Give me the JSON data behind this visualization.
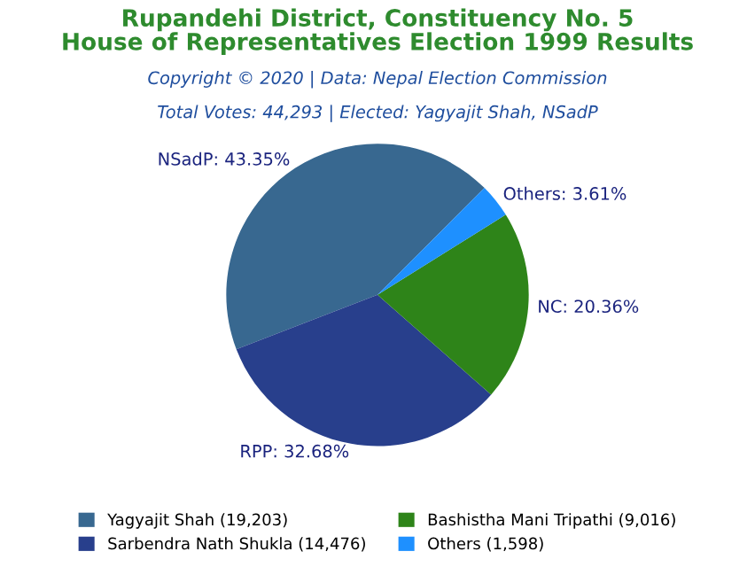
{
  "chart_data": {
    "type": "pie",
    "title": "Rupandehi District, Constituency No. 5\nHouse of Representatives Election 1999 Results",
    "subtitle": "Copyright © 2020 | Data: Nepal Election Commission",
    "annotations": [
      "Total Votes: 44,293 | Elected: Yagyajit Shah, NSadP"
    ],
    "categories": [
      "Yagyajit Shah (19,203)",
      "Sarbendra Nath Shukla (14,476)",
      "Bashistha Mani Tripathi (9,016)",
      "Others (1,598)"
    ],
    "values": [
      43.35,
      32.68,
      20.36,
      3.61
    ],
    "value_labels": [
      "NSadP: 43.35%",
      "RPP: 32.68%",
      "NC: 20.36%",
      "Others: 3.61%"
    ],
    "colors": [
      "#386890",
      "#283f8c",
      "#2e8419",
      "#1e90ff"
    ],
    "legend": "bottom"
  }
}
